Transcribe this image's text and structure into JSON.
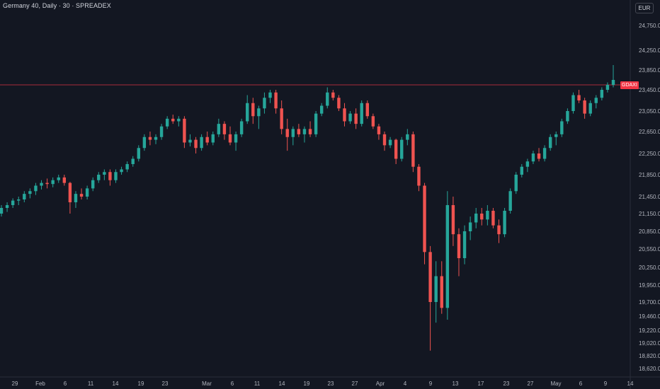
{
  "header": {
    "title": "Germany 40, Daily · 30 · SPREADEX",
    "currency": "EUR"
  },
  "colors": {
    "background": "#131722",
    "up": "#26a69a",
    "down": "#ef5350",
    "price_line": "#f23645",
    "text": "#b2b5be"
  },
  "chart_data": {
    "type": "candlestick",
    "title": "Germany 40, Daily · 30 · SPREADEX",
    "y_ticks": [
      "24,750.0",
      "24,250.0",
      "23,850.0",
      "23,450.0",
      "23,050.0",
      "22,650.0",
      "22,250.0",
      "21,850.0",
      "21,450.0",
      "21,150.0",
      "20,850.0",
      "20,550.0",
      "20,250.0",
      "19,950.0",
      "19,700.0",
      "19,460.0",
      "19,220.0",
      "19,020.0",
      "18,820.0",
      "18,620.0"
    ],
    "x_ticks": [
      "29",
      "Feb",
      "6",
      "11",
      "14",
      "19",
      "23",
      "Mar",
      "6",
      "11",
      "14",
      "19",
      "23",
      "27",
      "Apr",
      "4",
      "9",
      "13",
      "17",
      "23",
      "27",
      "May",
      "6",
      "9",
      "14"
    ],
    "current_price_label": "GDAXI",
    "current_price": 23550,
    "series": [
      {
        "values": [
          [
            21150,
            21300,
            21100,
            21250
          ],
          [
            21250,
            21350,
            21180,
            21300
          ],
          [
            21300,
            21420,
            21250,
            21380
          ],
          [
            21380,
            21450,
            21300,
            21400
          ],
          [
            21400,
            21550,
            21350,
            21500
          ],
          [
            21500,
            21600,
            21420,
            21550
          ],
          [
            21550,
            21700,
            21480,
            21650
          ],
          [
            21650,
            21750,
            21580,
            21700
          ],
          [
            21700,
            21780,
            21600,
            21680
          ],
          [
            21680,
            21800,
            21620,
            21750
          ],
          [
            21750,
            21850,
            21700,
            21800
          ],
          [
            21800,
            21850,
            21650,
            21700
          ],
          [
            21700,
            21720,
            21150,
            21350
          ],
          [
            21350,
            21550,
            21250,
            21500
          ],
          [
            21500,
            21600,
            21400,
            21450
          ],
          [
            21450,
            21650,
            21400,
            21600
          ],
          [
            21600,
            21800,
            21550,
            21750
          ],
          [
            21750,
            21900,
            21700,
            21850
          ],
          [
            21850,
            21950,
            21750,
            21900
          ],
          [
            21900,
            21950,
            21650,
            21750
          ],
          [
            21750,
            21950,
            21700,
            21900
          ],
          [
            21900,
            22000,
            21850,
            21950
          ],
          [
            21950,
            22100,
            21900,
            22050
          ],
          [
            22050,
            22200,
            22000,
            22150
          ],
          [
            22150,
            22400,
            22100,
            22350
          ],
          [
            22350,
            22600,
            22300,
            22550
          ],
          [
            22550,
            22650,
            22400,
            22500
          ],
          [
            22500,
            22600,
            22420,
            22550
          ],
          [
            22550,
            22800,
            22500,
            22750
          ],
          [
            22750,
            22950,
            22700,
            22900
          ],
          [
            22900,
            22980,
            22800,
            22850
          ],
          [
            22850,
            22950,
            22750,
            22900
          ],
          [
            22900,
            22950,
            22350,
            22450
          ],
          [
            22450,
            22600,
            22380,
            22500
          ],
          [
            22500,
            22550,
            22250,
            22350
          ],
          [
            22350,
            22600,
            22300,
            22550
          ],
          [
            22550,
            22650,
            22400,
            22450
          ],
          [
            22450,
            22650,
            22400,
            22600
          ],
          [
            22600,
            22900,
            22550,
            22800
          ],
          [
            22800,
            22850,
            22500,
            22600
          ],
          [
            22600,
            22750,
            22400,
            22450
          ],
          [
            22450,
            22650,
            22300,
            22600
          ],
          [
            22600,
            22900,
            22550,
            22850
          ],
          [
            22850,
            23350,
            22800,
            23200
          ],
          [
            23200,
            23300,
            22800,
            22950
          ],
          [
            22950,
            23150,
            22700,
            23100
          ],
          [
            23100,
            23400,
            23000,
            23300
          ],
          [
            23300,
            23450,
            23200,
            23400
          ],
          [
            23400,
            23450,
            23000,
            23100
          ],
          [
            23100,
            23250,
            22600,
            22700
          ],
          [
            22700,
            22900,
            22300,
            22550
          ],
          [
            22550,
            22750,
            22400,
            22700
          ],
          [
            22700,
            22800,
            22550,
            22600
          ],
          [
            22600,
            22750,
            22450,
            22700
          ],
          [
            22700,
            22850,
            22550,
            22600
          ],
          [
            22600,
            23050,
            22550,
            23000
          ],
          [
            23000,
            23200,
            22950,
            23150
          ],
          [
            23150,
            23500,
            23100,
            23400
          ],
          [
            23400,
            23450,
            23250,
            23300
          ],
          [
            23300,
            23350,
            23050,
            23100
          ],
          [
            23100,
            23200,
            22750,
            22850
          ],
          [
            22850,
            23050,
            22800,
            23000
          ],
          [
            23000,
            23100,
            22700,
            22800
          ],
          [
            22800,
            23250,
            22750,
            23200
          ],
          [
            23200,
            23250,
            22900,
            22950
          ],
          [
            22950,
            23000,
            22700,
            22750
          ],
          [
            22750,
            22800,
            22500,
            22600
          ],
          [
            22600,
            22650,
            22300,
            22400
          ],
          [
            22400,
            22550,
            22350,
            22500
          ],
          [
            22500,
            22520,
            22050,
            22150
          ],
          [
            22150,
            22550,
            22100,
            22500
          ],
          [
            22500,
            22700,
            22400,
            22600
          ],
          [
            22600,
            22650,
            21900,
            22000
          ],
          [
            22000,
            22050,
            21550,
            21650
          ],
          [
            21650,
            21700,
            20300,
            20500
          ],
          [
            20500,
            20600,
            18900,
            19700
          ],
          [
            19700,
            20350,
            19350,
            20100
          ],
          [
            20100,
            20350,
            19500,
            19600
          ],
          [
            19600,
            21550,
            19400,
            21300
          ],
          [
            21300,
            21450,
            20600,
            20800
          ],
          [
            20800,
            20900,
            20100,
            20400
          ],
          [
            20400,
            20950,
            20300,
            20850
          ],
          [
            20850,
            21100,
            20700,
            21000
          ],
          [
            21000,
            21250,
            20900,
            21150
          ],
          [
            21150,
            21250,
            20950,
            21050
          ],
          [
            21050,
            21300,
            20950,
            21200
          ],
          [
            21200,
            21250,
            20900,
            20950
          ],
          [
            20950,
            21050,
            20650,
            20800
          ],
          [
            20800,
            21250,
            20750,
            21200
          ],
          [
            21200,
            21600,
            21150,
            21550
          ],
          [
            21550,
            21900,
            21500,
            21850
          ],
          [
            21850,
            22050,
            21800,
            22000
          ],
          [
            22000,
            22150,
            21900,
            22100
          ],
          [
            22100,
            22300,
            22050,
            22250
          ],
          [
            22250,
            22350,
            22100,
            22150
          ],
          [
            22150,
            22400,
            22100,
            22350
          ],
          [
            22350,
            22600,
            22300,
            22550
          ],
          [
            22550,
            22650,
            22400,
            22600
          ],
          [
            22600,
            22900,
            22550,
            22850
          ],
          [
            22850,
            23100,
            22800,
            23050
          ],
          [
            23050,
            23400,
            23000,
            23350
          ],
          [
            23350,
            23450,
            23200,
            23250
          ],
          [
            23250,
            23300,
            22900,
            23000
          ],
          [
            23000,
            23250,
            22950,
            23200
          ],
          [
            23200,
            23350,
            23100,
            23300
          ],
          [
            23300,
            23500,
            23250,
            23450
          ],
          [
            23450,
            23600,
            23400,
            23550
          ],
          [
            23550,
            23950,
            23500,
            23650
          ]
        ]
      }
    ]
  }
}
